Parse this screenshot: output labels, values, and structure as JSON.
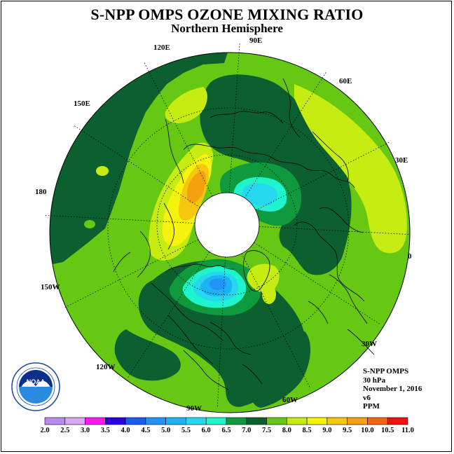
{
  "header": {
    "title": "S-NPP OMPS OZONE MIXING RATIO",
    "subtitle": "Northern Hemisphere"
  },
  "longitude_labels": {
    "e90": "90E",
    "e120": "120E",
    "e60": "60E",
    "e150": "150E",
    "e30": "30E",
    "l180": "180",
    "l0": "0",
    "w150": "150W",
    "w30": "30W",
    "w120": "120W",
    "w60": "60W",
    "w90": "90W"
  },
  "info": {
    "instrument": "S-NPP OMPS",
    "level": "30 hPa",
    "date": "November 1, 2016",
    "version": "v6",
    "unit": "PPM"
  },
  "logo": {
    "text": "NOAA"
  },
  "colorbar": {
    "ticks": [
      "2.0",
      "2.5",
      "3.0",
      "3.5",
      "4.0",
      "4.5",
      "5.0",
      "5.5",
      "6.0",
      "6.5",
      "7.0",
      "7.5",
      "8.0",
      "8.5",
      "9.0",
      "9.5",
      "10.0",
      "10.5",
      "11.0"
    ],
    "colors": [
      "#b98aef",
      "#d8a8f4",
      "#ff18f4",
      "#2900e0",
      "#1a5bf0",
      "#2393f6",
      "#1ab4f2",
      "#25d8ef",
      "#1ef5cf",
      "#0f9a3d",
      "#0c5f2e",
      "#67c814",
      "#c7ec12",
      "#f6f40e",
      "#f5c80e",
      "#f5a00e",
      "#f5640e",
      "#ee1212",
      "#7c4f30"
    ]
  },
  "map_colors": {
    "c60": "#1ef5cf",
    "c65": "#0f9a3d",
    "c70": "#0c5f2e",
    "c75": "#67c814",
    "c80": "#c7ec12",
    "c85": "#f6f40e",
    "c90": "#f5c80e",
    "c95": "#f5a00e",
    "c55": "#25d8ef",
    "c50": "#1ab4f2",
    "c45": "#2393f6"
  }
}
